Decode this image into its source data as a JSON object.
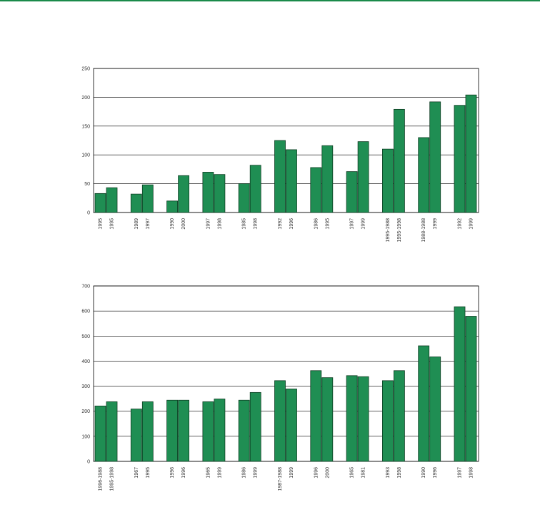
{
  "colors": {
    "bar": "#1f8e53",
    "bar_stroke": "#0d3d22",
    "frame": "#000000",
    "grid": "#000000",
    "accent_rule": "#1a8a4a"
  },
  "chart_data": [
    {
      "type": "bar",
      "ylim": [
        0,
        250
      ],
      "yticks": [
        "0",
        "50",
        "100",
        "150",
        "200",
        "250"
      ],
      "grid": true,
      "categories": [
        "1995",
        "1995",
        "1989",
        "1997",
        "1990",
        "2000",
        "1997",
        "1998",
        "1985",
        "1998",
        "1992",
        "1996",
        "1986",
        "1995",
        "1997",
        "1999",
        "1995-1988",
        "1995-1998",
        "1988-1988",
        "1999",
        "1992",
        "1999"
      ],
      "values": [
        33,
        43,
        32,
        48,
        20,
        64,
        70,
        66,
        50,
        82,
        125,
        109,
        78,
        116,
        71,
        123,
        110,
        179,
        130,
        192,
        186,
        204
      ]
    },
    {
      "type": "bar",
      "ylim": [
        0,
        700
      ],
      "yticks": [
        "0",
        "100",
        "200",
        "300",
        "400",
        "500",
        "600",
        "700"
      ],
      "grid": true,
      "categories": [
        "1996-1988",
        "1995-1998",
        "1967",
        "1995",
        "1996",
        "1996",
        "1965",
        "1999",
        "1986",
        "1999",
        "1987-1988",
        "1999",
        "1996",
        "2000",
        "1965",
        "1981",
        "1993",
        "1998",
        "1990",
        "1996",
        "1997",
        "1998"
      ],
      "values": [
        221,
        238,
        209,
        238,
        244,
        244,
        238,
        249,
        244,
        275,
        322,
        289,
        362,
        334,
        342,
        338,
        322,
        362,
        461,
        417,
        617,
        579
      ]
    }
  ]
}
